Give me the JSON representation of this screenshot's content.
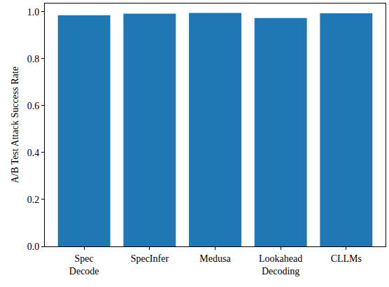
{
  "chart_data": {
    "type": "bar",
    "y_label": "A/B Test Attack Success Rate",
    "categories": [
      "Spec Decode",
      "SpecInfer",
      "Medusa",
      "Lookahead Decoding",
      "CLLMs"
    ],
    "values": [
      0.985,
      0.992,
      0.995,
      0.973,
      0.993
    ],
    "color": "#1f77b4",
    "ylim": [
      0,
      1.035
    ],
    "yticks": [
      {
        "value": 0,
        "label": "0.0"
      },
      {
        "value": 0.2,
        "label": "0.2"
      },
      {
        "value": 0.4,
        "label": "0.4"
      },
      {
        "value": 0.6,
        "label": "0.6"
      },
      {
        "value": 0.8,
        "label": "0.8"
      },
      {
        "value": 1,
        "label": "1.0"
      }
    ],
    "grid": false
  }
}
